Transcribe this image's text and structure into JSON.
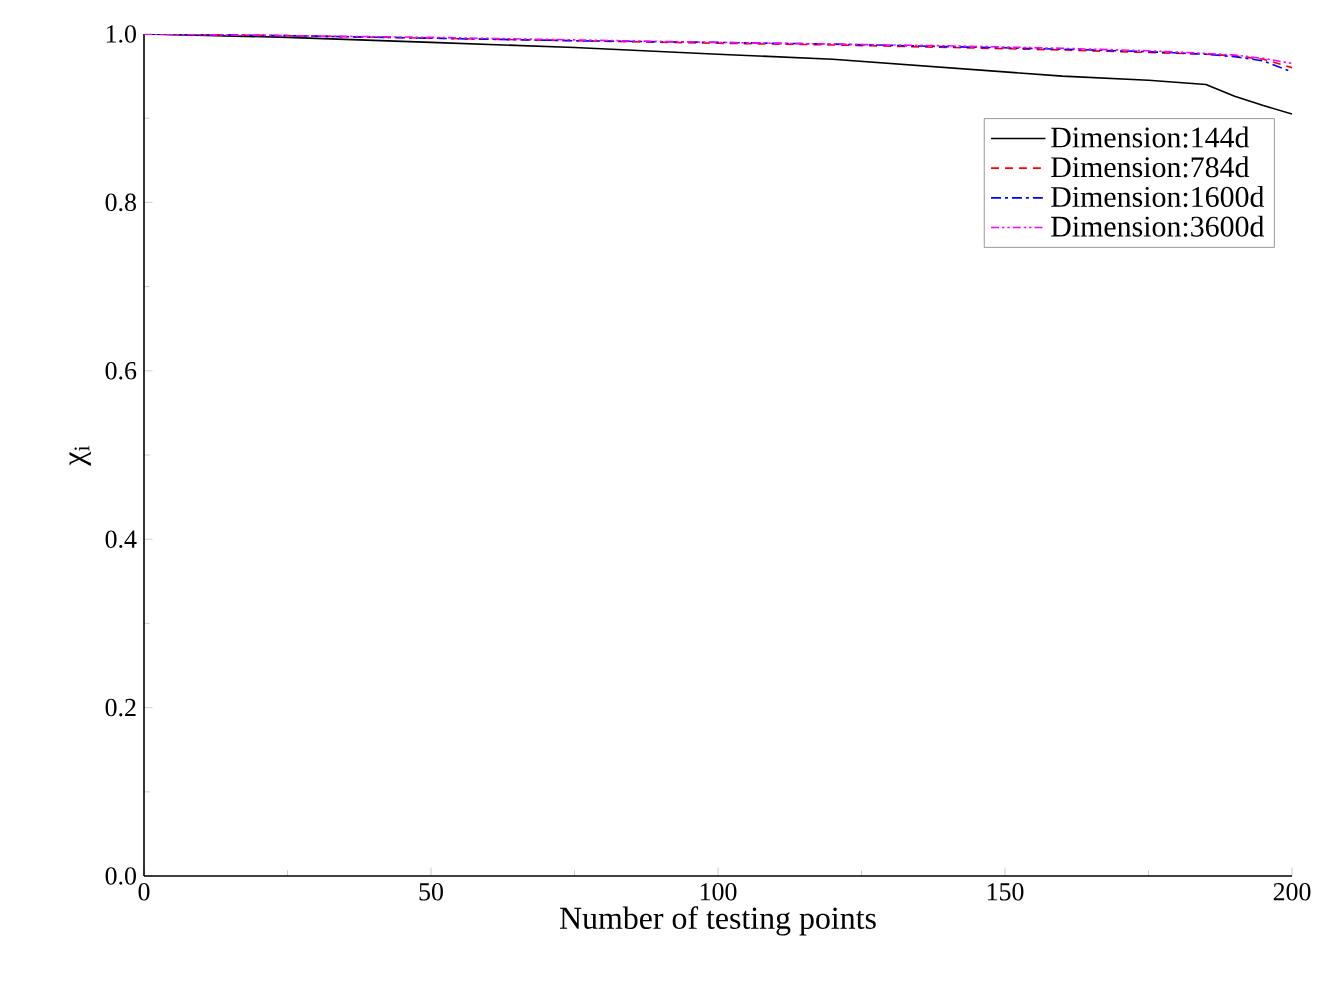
{
  "chart_data": {
    "type": "line",
    "xlabel": "Number of testing points",
    "ylabel": "χ$_{i}$",
    "x": [
      0,
      25,
      50,
      75,
      100,
      120,
      140,
      160,
      175,
      185,
      190,
      195,
      200
    ],
    "series": [
      {
        "name": "Dimension:144d",
        "color": "#000000",
        "line_style": "solid",
        "values": [
          1.0,
          0.996,
          0.99,
          0.984,
          0.976,
          0.97,
          0.96,
          0.95,
          0.945,
          0.94,
          0.926,
          0.915,
          0.905
        ]
      },
      {
        "name": "Dimension:784d",
        "color": "#ff0000",
        "line_style": "dashed",
        "values": [
          1.0,
          0.998,
          0.995,
          0.992,
          0.989,
          0.987,
          0.984,
          0.981,
          0.978,
          0.976,
          0.974,
          0.97,
          0.96
        ]
      },
      {
        "name": "Dimension:1600d",
        "color": "#0000ff",
        "line_style": "dashdot",
        "values": [
          1.0,
          0.998,
          0.995,
          0.992,
          0.99,
          0.988,
          0.985,
          0.982,
          0.979,
          0.976,
          0.973,
          0.968,
          0.955
        ]
      },
      {
        "name": "Dimension:3600d",
        "color": "#ff00ff",
        "line_style": "dashdotdot",
        "values": [
          1.0,
          0.998,
          0.996,
          0.993,
          0.99,
          0.988,
          0.986,
          0.983,
          0.98,
          0.977,
          0.975,
          0.971,
          0.965
        ]
      }
    ],
    "xlim": [
      0,
      200
    ],
    "xticks": [
      0,
      50,
      100,
      150,
      200
    ],
    "ylim": [
      0,
      1
    ],
    "yticks": [
      {
        "value": 0,
        "label": "0.0"
      },
      {
        "value": 0.2,
        "label": "0.2"
      },
      {
        "value": 0.4,
        "label": "0.4"
      },
      {
        "value": 0.6,
        "label": "0.6"
      },
      {
        "value": 0.8,
        "label": "0.8"
      },
      {
        "value": 1,
        "label": "1.0"
      }
    ],
    "grid": false,
    "legend": "top right",
    "marker": "none"
  }
}
